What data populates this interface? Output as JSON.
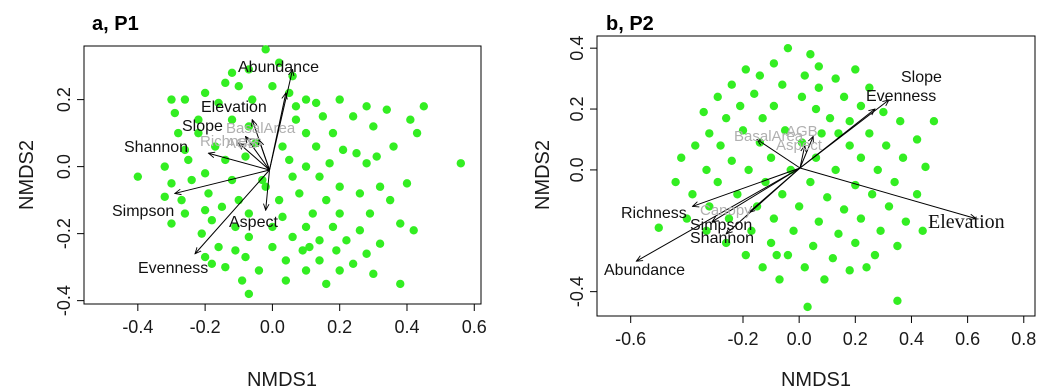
{
  "chart_data": [
    {
      "type": "scatter",
      "panel_label": "a, P1",
      "xlabel": "NMDS1",
      "ylabel": "NMDS2",
      "xlim": [
        -0.56,
        0.62
      ],
      "ylim": [
        -0.41,
        0.36
      ],
      "xticks": [
        -0.4,
        -0.2,
        0.0,
        0.2,
        0.4,
        0.6
      ],
      "yticks": [
        -0.4,
        -0.2,
        0.0,
        0.2
      ],
      "point_color": "#33ee22",
      "points": [
        [
          -0.02,
          0.35
        ],
        [
          -0.07,
          0.29
        ],
        [
          -0.12,
          0.28
        ],
        [
          0.02,
          0.31
        ],
        [
          -0.14,
          0.25
        ],
        [
          0.06,
          0.27
        ],
        [
          -0.1,
          0.24
        ],
        [
          -0.2,
          0.22
        ],
        [
          -0.26,
          0.2
        ],
        [
          0.0,
          0.24
        ],
        [
          0.05,
          0.22
        ],
        [
          0.1,
          0.2
        ],
        [
          -0.16,
          0.19
        ],
        [
          -0.06,
          0.2
        ],
        [
          0.13,
          0.19
        ],
        [
          0.2,
          0.2
        ],
        [
          0.28,
          0.18
        ],
        [
          0.34,
          0.17
        ],
        [
          0.45,
          0.18
        ],
        [
          -0.3,
          0.2
        ],
        [
          -0.29,
          0.16
        ],
        [
          -0.22,
          0.14
        ],
        [
          -0.12,
          0.14
        ],
        [
          0.07,
          0.14
        ],
        [
          0.15,
          0.15
        ],
        [
          0.24,
          0.15
        ],
        [
          0.41,
          0.14
        ],
        [
          -0.28,
          0.1
        ],
        [
          -0.22,
          0.1
        ],
        [
          -0.07,
          0.12
        ],
        [
          0.1,
          0.1
        ],
        [
          0.18,
          0.1
        ],
        [
          0.3,
          0.12
        ],
        [
          0.36,
          0.06
        ],
        [
          0.43,
          0.1
        ],
        [
          -0.26,
          0.05
        ],
        [
          -0.17,
          0.06
        ],
        [
          -0.05,
          0.07
        ],
        [
          0.03,
          0.06
        ],
        [
          0.13,
          0.06
        ],
        [
          0.21,
          0.05
        ],
        [
          0.25,
          0.04
        ],
        [
          0.31,
          0.03
        ],
        [
          -0.32,
          0.0
        ],
        [
          -0.25,
          0.02
        ],
        [
          -0.14,
          0.02
        ],
        [
          -0.08,
          0.03
        ],
        [
          0.05,
          0.02
        ],
        [
          0.1,
          0.0
        ],
        [
          0.17,
          0.01
        ],
        [
          0.28,
          0.01
        ],
        [
          0.56,
          0.01
        ],
        [
          -0.4,
          -0.03
        ],
        [
          -0.3,
          -0.05
        ],
        [
          -0.24,
          -0.04
        ],
        [
          -0.2,
          -0.02
        ],
        [
          -0.12,
          -0.04
        ],
        [
          -0.03,
          -0.04
        ],
        [
          0.06,
          -0.03
        ],
        [
          0.14,
          -0.03
        ],
        [
          0.2,
          -0.06
        ],
        [
          0.32,
          -0.06
        ],
        [
          0.4,
          -0.05
        ],
        [
          -0.32,
          -0.09
        ],
        [
          -0.27,
          -0.1
        ],
        [
          -0.19,
          -0.08
        ],
        [
          -0.1,
          -0.1
        ],
        [
          0.02,
          -0.1
        ],
        [
          0.08,
          -0.08
        ],
        [
          0.16,
          -0.1
        ],
        [
          0.26,
          -0.08
        ],
        [
          0.35,
          -0.1
        ],
        [
          -0.26,
          -0.14
        ],
        [
          -0.2,
          -0.13
        ],
        [
          -0.15,
          -0.12
        ],
        [
          -0.07,
          -0.14
        ],
        [
          0.03,
          -0.15
        ],
        [
          0.12,
          -0.14
        ],
        [
          0.2,
          -0.14
        ],
        [
          0.29,
          -0.14
        ],
        [
          -0.3,
          -0.17
        ],
        [
          -0.18,
          -0.16
        ],
        [
          -0.11,
          -0.18
        ],
        [
          0.0,
          -0.18
        ],
        [
          0.1,
          -0.18
        ],
        [
          0.18,
          -0.18
        ],
        [
          0.26,
          -0.19
        ],
        [
          0.38,
          -0.17
        ],
        [
          0.42,
          -0.19
        ],
        [
          -0.21,
          -0.2
        ],
        [
          -0.07,
          -0.21
        ],
        [
          0.06,
          -0.21
        ],
        [
          0.14,
          -0.22
        ],
        [
          0.22,
          -0.22
        ],
        [
          0.32,
          -0.23
        ],
        [
          -0.16,
          -0.24
        ],
        [
          -0.11,
          -0.25
        ],
        [
          0.0,
          -0.24
        ],
        [
          0.09,
          -0.25
        ],
        [
          0.19,
          -0.25
        ],
        [
          0.28,
          -0.26
        ],
        [
          -0.2,
          -0.27
        ],
        [
          -0.08,
          -0.27
        ],
        [
          0.04,
          -0.28
        ],
        [
          0.14,
          -0.28
        ],
        [
          0.24,
          -0.29
        ],
        [
          -0.14,
          -0.3
        ],
        [
          -0.04,
          -0.31
        ],
        [
          0.1,
          -0.31
        ],
        [
          0.2,
          -0.31
        ],
        [
          0.3,
          -0.32
        ],
        [
          -0.09,
          -0.34
        ],
        [
          0.04,
          -0.34
        ],
        [
          0.16,
          -0.35
        ],
        [
          0.38,
          -0.35
        ],
        [
          -0.07,
          -0.38
        ],
        [
          0.11,
          -0.24
        ],
        [
          -0.02,
          -0.06
        ],
        [
          0.07,
          0.18
        ],
        [
          -0.18,
          -0.29
        ]
      ],
      "vectors": [
        {
          "label": "Abundance",
          "x": 0.06,
          "y": 0.29
        },
        {
          "label": "Elevation",
          "x": 0.04,
          "y": 0.22
        },
        {
          "label": "Slope",
          "x": -0.06,
          "y": 0.14
        },
        {
          "label": "Shannon",
          "x": -0.19,
          "y": 0.04
        },
        {
          "label": "Simpson",
          "x": -0.29,
          "y": -0.08
        },
        {
          "label": "Evenness",
          "x": -0.23,
          "y": -0.26
        },
        {
          "label": "Aspect",
          "x": -0.02,
          "y": -0.13
        },
        {
          "label": "BasalArea",
          "x": -0.08,
          "y": 0.09
        },
        {
          "label": "Richness",
          "x": -0.1,
          "y": 0.07
        },
        {
          "label": "AGB",
          "x": -0.04,
          "y": 0.08
        }
      ]
    },
    {
      "type": "scatter",
      "panel_label": "b, P2",
      "xlabel": "NMDS1",
      "ylabel": "NMDS2",
      "xlim": [
        -0.72,
        0.84
      ],
      "ylim": [
        -0.48,
        0.44
      ],
      "xticks": [
        -0.6,
        -0.2,
        0.0,
        0.2,
        0.4,
        0.6,
        0.8
      ],
      "yticks": [
        -0.4,
        0.0,
        0.2,
        0.4
      ],
      "point_color": "#33ee22",
      "points": [
        [
          -0.04,
          0.4
        ],
        [
          0.04,
          0.38
        ],
        [
          -0.09,
          0.35
        ],
        [
          0.07,
          0.34
        ],
        [
          -0.19,
          0.33
        ],
        [
          0.2,
          0.33
        ],
        [
          -0.14,
          0.31
        ],
        [
          0.02,
          0.31
        ],
        [
          0.13,
          0.3
        ],
        [
          -0.24,
          0.28
        ],
        [
          -0.06,
          0.28
        ],
        [
          0.07,
          0.27
        ],
        [
          0.25,
          0.27
        ],
        [
          -0.29,
          0.24
        ],
        [
          -0.16,
          0.25
        ],
        [
          0.01,
          0.24
        ],
        [
          0.16,
          0.24
        ],
        [
          -0.21,
          0.21
        ],
        [
          -0.09,
          0.21
        ],
        [
          0.06,
          0.2
        ],
        [
          0.22,
          0.21
        ],
        [
          0.3,
          0.19
        ],
        [
          -0.34,
          0.19
        ],
        [
          -0.26,
          0.17
        ],
        [
          -0.13,
          0.17
        ],
        [
          0.11,
          0.17
        ],
        [
          0.18,
          0.16
        ],
        [
          0.36,
          0.16
        ],
        [
          0.48,
          0.16
        ],
        [
          -0.32,
          0.12
        ],
        [
          -0.2,
          0.13
        ],
        [
          -0.05,
          0.13
        ],
        [
          0.14,
          0.12
        ],
        [
          0.25,
          0.12
        ],
        [
          0.42,
          0.1
        ],
        [
          -0.37,
          0.08
        ],
        [
          -0.28,
          0.08
        ],
        [
          -0.14,
          0.09
        ],
        [
          0.01,
          0.09
        ],
        [
          0.18,
          0.08
        ],
        [
          0.31,
          0.08
        ],
        [
          -0.42,
          0.04
        ],
        [
          -0.24,
          0.03
        ],
        [
          -0.1,
          0.04
        ],
        [
          0.06,
          0.04
        ],
        [
          0.22,
          0.04
        ],
        [
          0.37,
          0.04
        ],
        [
          -0.33,
          0.0
        ],
        [
          -0.18,
          0.0
        ],
        [
          -0.03,
          0.0
        ],
        [
          0.13,
          0.0
        ],
        [
          0.28,
          0.0
        ],
        [
          0.45,
          0.01
        ],
        [
          -0.44,
          -0.04
        ],
        [
          -0.29,
          -0.04
        ],
        [
          -0.12,
          -0.04
        ],
        [
          0.04,
          -0.04
        ],
        [
          0.2,
          -0.05
        ],
        [
          0.34,
          -0.04
        ],
        [
          -0.38,
          -0.08
        ],
        [
          -0.22,
          -0.08
        ],
        [
          -0.06,
          -0.08
        ],
        [
          0.1,
          -0.09
        ],
        [
          0.26,
          -0.08
        ],
        [
          0.42,
          -0.08
        ],
        [
          -0.32,
          -0.12
        ],
        [
          -0.15,
          -0.12
        ],
        [
          0.0,
          -0.12
        ],
        [
          0.16,
          -0.13
        ],
        [
          0.32,
          -0.12
        ],
        [
          -0.4,
          -0.16
        ],
        [
          -0.25,
          -0.16
        ],
        [
          -0.09,
          -0.16
        ],
        [
          0.07,
          -0.17
        ],
        [
          0.22,
          -0.16
        ],
        [
          0.38,
          -0.17
        ],
        [
          -0.33,
          -0.2
        ],
        [
          -0.17,
          -0.2
        ],
        [
          -0.02,
          -0.2
        ],
        [
          0.14,
          -0.21
        ],
        [
          0.29,
          -0.2
        ],
        [
          -0.26,
          -0.24
        ],
        [
          -0.1,
          -0.24
        ],
        [
          0.05,
          -0.25
        ],
        [
          0.2,
          -0.24
        ],
        [
          0.35,
          -0.25
        ],
        [
          -0.19,
          -0.28
        ],
        [
          -0.04,
          -0.28
        ],
        [
          0.12,
          -0.29
        ],
        [
          0.27,
          -0.28
        ],
        [
          -0.13,
          -0.32
        ],
        [
          0.02,
          -0.32
        ],
        [
          0.18,
          -0.33
        ],
        [
          -0.07,
          -0.36
        ],
        [
          0.09,
          -0.36
        ],
        [
          0.03,
          -0.45
        ],
        [
          0.35,
          -0.43
        ],
        [
          0.44,
          -0.2
        ],
        [
          -0.5,
          -0.19
        ],
        [
          0.08,
          0.12
        ],
        [
          -0.08,
          -0.28
        ],
        [
          0.24,
          -0.32
        ]
      ],
      "vectors": [
        {
          "label": "Slope",
          "x": 0.32,
          "y": 0.23
        },
        {
          "label": "Evenness",
          "x": 0.27,
          "y": 0.2
        },
        {
          "label": "Elevation",
          "x": 0.63,
          "y": -0.16
        },
        {
          "label": "Richness",
          "x": -0.38,
          "y": -0.12
        },
        {
          "label": "Simpson",
          "x": -0.31,
          "y": -0.17
        },
        {
          "label": "Shannon",
          "x": -0.26,
          "y": -0.21
        },
        {
          "label": "Abundance",
          "x": -0.58,
          "y": -0.3
        },
        {
          "label": "BasalArea",
          "x": -0.15,
          "y": 0.1
        },
        {
          "label": "AGB",
          "x": 0.05,
          "y": 0.11
        },
        {
          "label": "Canopy",
          "x": -0.18,
          "y": -0.14
        },
        {
          "label": "Aspect",
          "x": 0.02,
          "y": 0.08
        }
      ]
    }
  ]
}
